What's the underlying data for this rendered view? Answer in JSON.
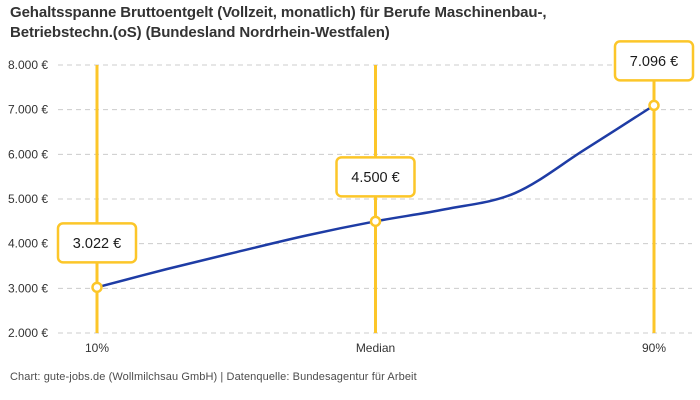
{
  "header": {
    "title": "Gehaltsspanne Bruttoentgelt (Vollzeit, monatlich) für Berufe Maschinenbau-, Betriebstechn.(oS) (Bundesland Nordrhein-Westfalen)",
    "title_lines": [
      "Gehaltsspanne Bruttoentgelt (Vollzeit, monatlich) für Berufe Maschinenbau-,",
      "Betriebstechn.(oS) (Bundesland Nordrhein-Westfalen)"
    ]
  },
  "footer": {
    "credit": "Chart: gute-jobs.de (Wollmilchsau GmbH) | Datenquelle: Bundesagentur für Arbeit"
  },
  "chart_data": {
    "type": "line",
    "title": "Gehaltsspanne Bruttoentgelt (Vollzeit, monatlich) für Berufe Maschinenbau-, Betriebstechn.(oS) (Bundesland Nordrhein-Westfalen)",
    "xlabel": "",
    "ylabel": "",
    "legend": "none",
    "grid": "dashed-horizontal",
    "points": [
      {
        "tick": "10%",
        "key": "10",
        "percentile": 10,
        "value": 3022,
        "value_label": "3.022 €"
      },
      {
        "tick": "Median",
        "key": "median",
        "percentile": 50,
        "value": 4500,
        "value_label": "4.500 €"
      },
      {
        "tick": "90%",
        "key": "90",
        "percentile": 90,
        "value": 7096,
        "value_label": "7.096 €"
      }
    ],
    "curve_samples": {
      "percentiles": [
        10,
        20,
        30,
        40,
        50,
        60,
        70,
        80,
        90
      ],
      "values": [
        3022,
        3430,
        3810,
        4180,
        4500,
        4770,
        5130,
        6100,
        7096
      ]
    },
    "y_axis": {
      "min": 2000,
      "max": 8000,
      "step": 1000,
      "tick_labels": [
        "8.000 €",
        "7.000 €",
        "6.000 €",
        "5.000 €",
        "4.000 €",
        "3.000 €",
        "2.000 €"
      ]
    },
    "colors": {
      "line": "#1e3ca5",
      "accent": "#fcc629",
      "grid": "#cccccc",
      "text": "#333333",
      "label_text": "#1a1a1a",
      "background": "#ffffff"
    }
  }
}
